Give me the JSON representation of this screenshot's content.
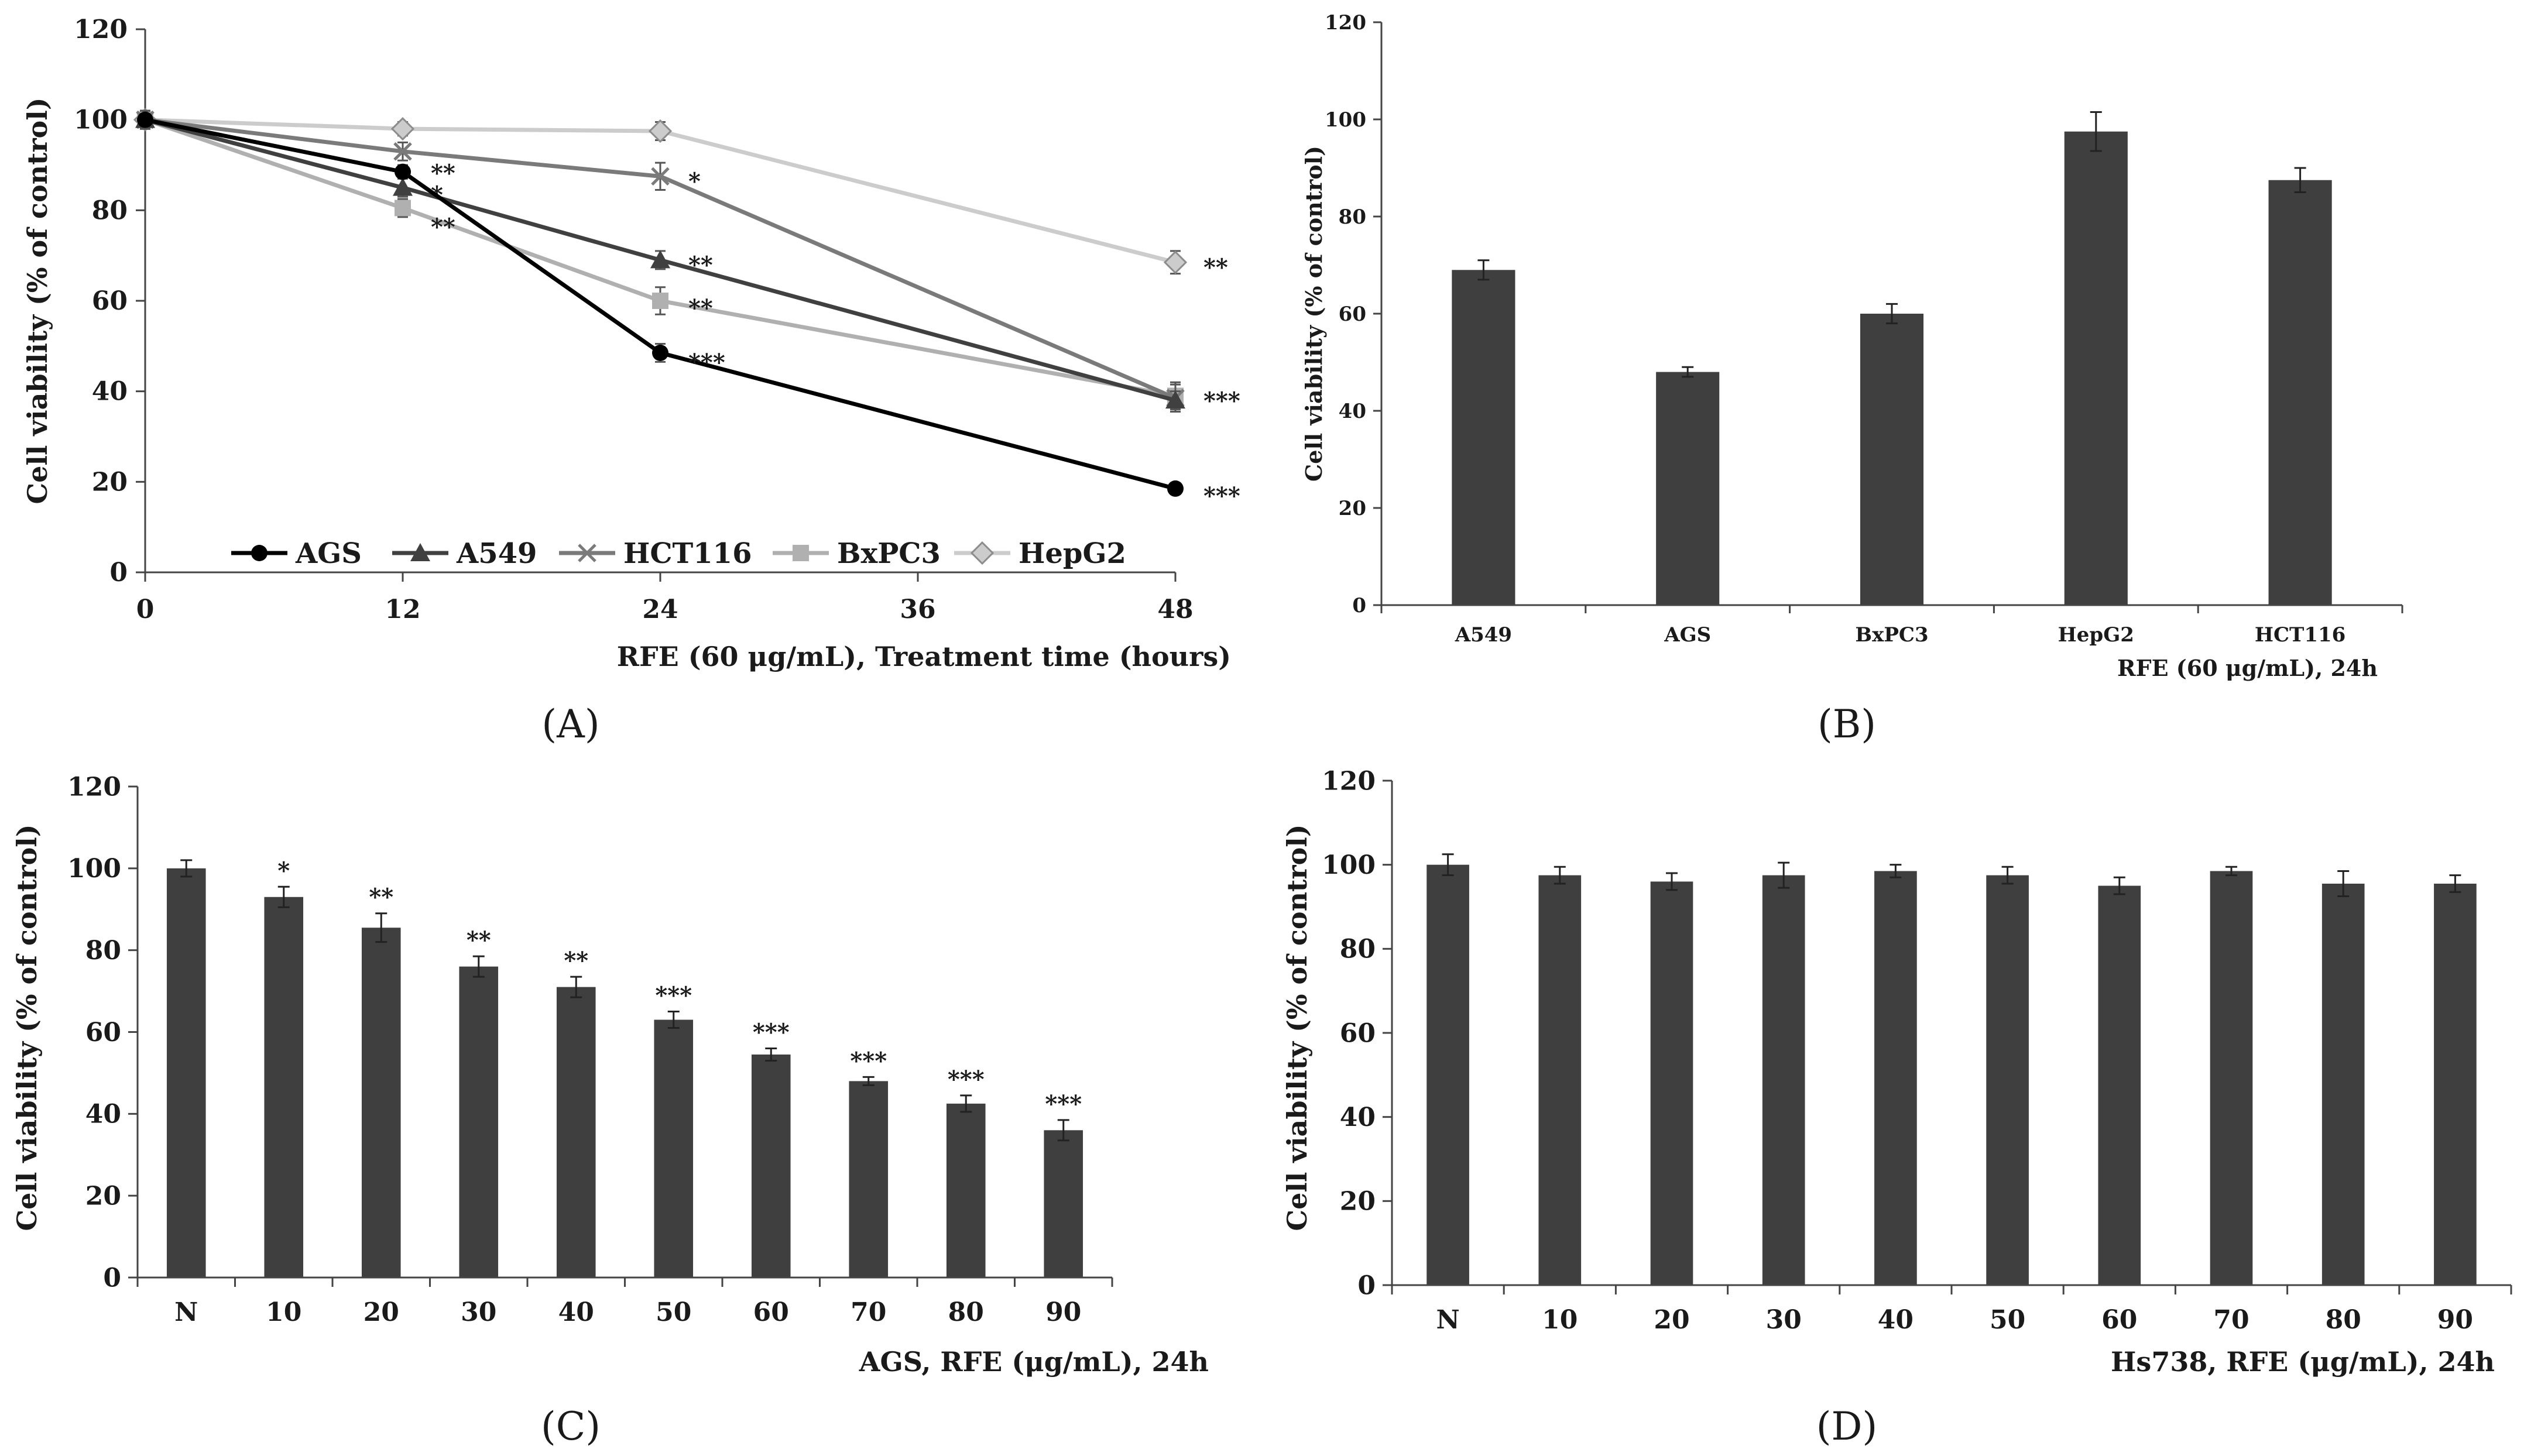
{
  "panels": {
    "A": "(A)",
    "B": "(B)",
    "C": "(C)",
    "D": "(D)"
  },
  "chart_data": [
    {
      "id": "A",
      "type": "line",
      "x": [
        0,
        12,
        24,
        48
      ],
      "xticks": [
        "0",
        "12",
        "24",
        "36",
        "48"
      ],
      "xlim": [
        0,
        48
      ],
      "yticks": [
        "0",
        "20",
        "40",
        "60",
        "80",
        "100",
        "120"
      ],
      "ylim": [
        0,
        120
      ],
      "xlabel": "RFE (60 μg/mL), Treatment time (hours)",
      "ylabel": "Cell viability (% of control)",
      "legend_position": "bottom",
      "series": [
        {
          "name": "AGS",
          "color": "#000000",
          "marker": "circle",
          "values": [
            100,
            88.5,
            48.5,
            18.5
          ],
          "errors": [
            2,
            1.5,
            2,
            1
          ],
          "sig": [
            "",
            "**",
            "***",
            "***"
          ]
        },
        {
          "name": "A549",
          "color": "#404040",
          "marker": "triangle",
          "values": [
            100,
            85,
            69,
            38
          ],
          "errors": [
            2,
            2,
            2,
            2
          ],
          "sig": [
            "",
            "*",
            "**",
            ""
          ]
        },
        {
          "name": "HCT116",
          "color": "#7a7a7a",
          "marker": "x",
          "values": [
            100,
            93,
            87.5,
            38.5
          ],
          "errors": [
            2,
            2,
            3,
            3
          ],
          "sig": [
            "",
            "",
            "*",
            "***"
          ]
        },
        {
          "name": "BxPC3",
          "color": "#b0b0b0",
          "marker": "square",
          "values": [
            100,
            80.5,
            60,
            39
          ],
          "errors": [
            2,
            2,
            3,
            3
          ],
          "sig": [
            "",
            "**",
            "**",
            ""
          ]
        },
        {
          "name": "HepG2",
          "color": "#cccccc",
          "marker": "diamond",
          "values": [
            100,
            98,
            97.5,
            68.5
          ],
          "errors": [
            2,
            1.5,
            2,
            2.5
          ],
          "sig": [
            "",
            "",
            "",
            "**"
          ]
        }
      ]
    },
    {
      "id": "B",
      "type": "bar",
      "categories": [
        "A549",
        "AGS",
        "BxPC3",
        "HepG2",
        "HCT116"
      ],
      "values": [
        69,
        48,
        60,
        97.5,
        87.5
      ],
      "errors": [
        2,
        1,
        2,
        4,
        2.5
      ],
      "sig": [
        "",
        "",
        "",
        "",
        ""
      ],
      "yticks": [
        "0",
        "20",
        "40",
        "60",
        "80",
        "100",
        "120"
      ],
      "ylim": [
        0,
        120
      ],
      "xlabel": "RFE (60 μg/mL), 24h",
      "ylabel": "Cell viability (% of control)",
      "bar_color": "#3f3f3f"
    },
    {
      "id": "C",
      "type": "bar",
      "categories": [
        "N",
        "10",
        "20",
        "30",
        "40",
        "50",
        "60",
        "70",
        "80",
        "90"
      ],
      "values": [
        100,
        93,
        85.5,
        76,
        71,
        63,
        54.5,
        48,
        42.5,
        36
      ],
      "errors": [
        2,
        2.5,
        3.5,
        2.5,
        2.5,
        2,
        1.5,
        1,
        2,
        2.5
      ],
      "sig": [
        "",
        "*",
        "**",
        "**",
        "**",
        "***",
        "***",
        "***",
        "***",
        "***"
      ],
      "yticks": [
        "0",
        "20",
        "40",
        "60",
        "80",
        "100",
        "120"
      ],
      "ylim": [
        0,
        120
      ],
      "xlabel": "AGS, RFE (μg/mL), 24h",
      "ylabel": "Cell viability (% of control)",
      "bar_color": "#3f3f3f"
    },
    {
      "id": "D",
      "type": "bar",
      "categories": [
        "N",
        "10",
        "20",
        "30",
        "40",
        "50",
        "60",
        "70",
        "80",
        "90"
      ],
      "values": [
        100,
        97.5,
        96,
        97.5,
        98.5,
        97.5,
        95,
        98.5,
        95.5,
        95.5
      ],
      "errors": [
        2.5,
        2,
        2,
        3,
        1.5,
        2,
        2,
        1,
        3,
        2
      ],
      "sig": [
        "",
        "",
        "",
        "",
        "",
        "",
        "",
        "",
        "",
        ""
      ],
      "yticks": [
        "0",
        "20",
        "40",
        "60",
        "80",
        "100",
        "120"
      ],
      "ylim": [
        0,
        120
      ],
      "xlabel": "Hs738, RFE (μg/mL), 24h",
      "ylabel": "Cell viability (% of control)",
      "bar_color": "#3f3f3f"
    }
  ]
}
